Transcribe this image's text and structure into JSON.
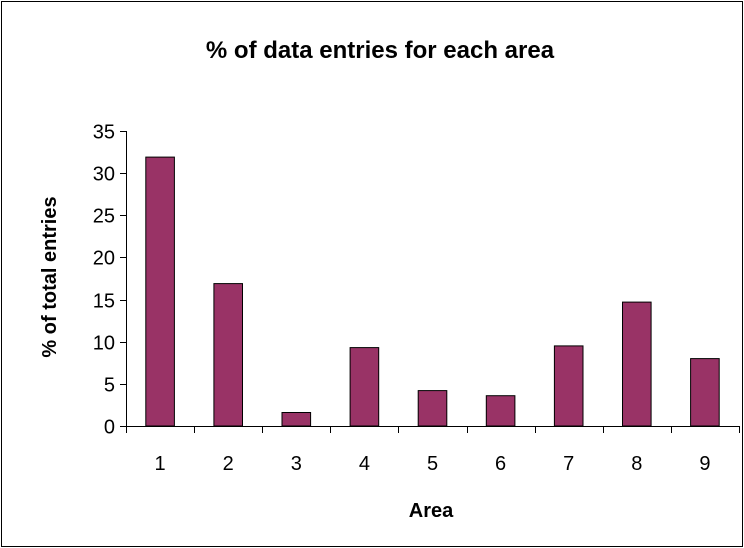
{
  "chart_data": {
    "type": "bar",
    "title": "% of data entries for each area",
    "xlabel": "Area",
    "ylabel": "% of total entries",
    "categories": [
      "1",
      "2",
      "3",
      "4",
      "5",
      "6",
      "7",
      "8",
      "9"
    ],
    "values": [
      31.9,
      16.9,
      1.6,
      9.3,
      4.2,
      3.6,
      9.5,
      14.7,
      8.0
    ],
    "ylim": [
      0,
      35
    ],
    "yticks": [
      "0",
      "5",
      "10",
      "15",
      "20",
      "25",
      "30",
      "35"
    ],
    "grid": false,
    "legend": "none",
    "bar_color": "#993366"
  }
}
